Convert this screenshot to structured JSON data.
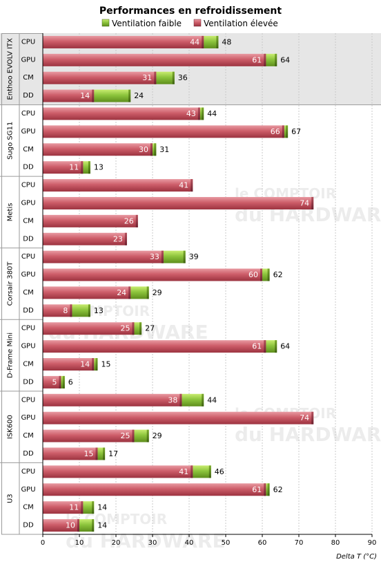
{
  "chart_data": {
    "type": "bar",
    "orientation": "horizontal",
    "stacked": true,
    "title": "Performances en refroidissement",
    "xlabel": "Delta T (°C)",
    "xlim": [
      0,
      90
    ],
    "xticks": [
      0,
      10,
      20,
      30,
      40,
      50,
      60,
      70,
      80,
      90
    ],
    "legend_position": "top",
    "grid": true,
    "categories": [
      "CPU",
      "GPU",
      "CM",
      "DD"
    ],
    "series": [
      {
        "name": "Ventilation faible",
        "color": "#8cc43c"
      },
      {
        "name": "Ventilation élevée",
        "color": "#d0606c"
      }
    ],
    "groups": [
      {
        "name": "Enthoo EVOLV ITX",
        "highlight": true,
        "elevee": [
          44,
          61,
          31,
          14
        ],
        "faible": [
          48,
          64,
          36,
          24
        ],
        "elevee_labels": [
          "44",
          "61",
          "31",
          "14"
        ],
        "faible_labels": [
          "48",
          "64",
          "36",
          "24"
        ]
      },
      {
        "name": "Sugo SG11",
        "highlight": false,
        "elevee": [
          43,
          66,
          30,
          11
        ],
        "faible": [
          44,
          67,
          31,
          13
        ],
        "elevee_labels": [
          "43",
          "66",
          "30",
          "11"
        ],
        "faible_labels": [
          "44",
          "67",
          "31",
          "13"
        ]
      },
      {
        "name": "Metis",
        "highlight": false,
        "elevee": [
          41,
          74,
          26,
          23
        ],
        "faible": [
          null,
          null,
          null,
          null
        ],
        "elevee_labels": [
          "41",
          "74",
          "26",
          "23"
        ],
        "faible_labels": [
          "",
          "",
          "",
          ""
        ]
      },
      {
        "name": "Corsair 380T",
        "highlight": false,
        "elevee": [
          33,
          60,
          24,
          8
        ],
        "faible": [
          39,
          62,
          29,
          13
        ],
        "elevee_labels": [
          "33",
          "60",
          "24",
          "8"
        ],
        "faible_labels": [
          "39",
          "62",
          "29",
          "13"
        ]
      },
      {
        "name": "D-Frame Mini",
        "highlight": false,
        "elevee": [
          25,
          61,
          14,
          5
        ],
        "faible": [
          27,
          64,
          15,
          6
        ],
        "elevee_labels": [
          "25",
          "61",
          "14",
          "5"
        ],
        "faible_labels": [
          "27",
          "64",
          "15",
          "6"
        ]
      },
      {
        "name": "ISK600",
        "highlight": false,
        "elevee": [
          38,
          74,
          25,
          15
        ],
        "faible": [
          44,
          null,
          29,
          17
        ],
        "elevee_labels": [
          "38",
          "74",
          "25",
          "15"
        ],
        "faible_labels": [
          "44",
          "",
          "29",
          "17"
        ]
      },
      {
        "name": "U3",
        "highlight": false,
        "elevee": [
          41,
          61,
          11,
          10
        ],
        "faible": [
          46,
          62,
          14,
          14
        ],
        "elevee_labels": [
          "41",
          "61",
          "11",
          "10"
        ],
        "faible_labels": [
          "46",
          "62",
          "14",
          "14"
        ]
      }
    ]
  },
  "watermark": {
    "line1": "le COMPTOIR",
    "line2": "du HARDWARE"
  }
}
